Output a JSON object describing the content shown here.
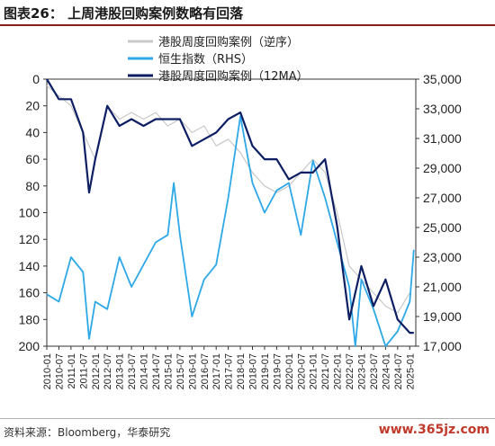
{
  "title": "图表26：  上周港股回购案例数略有回落",
  "source": "资料来源：Bloomberg，华泰研究",
  "watermark": "www.365jz.com",
  "chart_data": {
    "type": "line",
    "title": "上周港股回购案例数略有回落",
    "left_axis": {
      "label": "",
      "reversed": true,
      "ylim": [
        0,
        200
      ],
      "ticks": [
        0,
        20,
        40,
        60,
        80,
        100,
        120,
        140,
        160,
        180,
        200
      ]
    },
    "right_axis": {
      "label": "",
      "ylim": [
        17000,
        35000
      ],
      "ticks": [
        "17,000",
        "19,000",
        "21,000",
        "23,000",
        "25,000",
        "27,000",
        "29,000",
        "31,000",
        "33,000",
        "35,000"
      ]
    },
    "x_ticks": [
      "2010-01",
      "2010-07",
      "2011-01",
      "2011-07",
      "2012-01",
      "2012-07",
      "2013-01",
      "2013-07",
      "2014-01",
      "2014-07",
      "2015-01",
      "2015-07",
      "2016-01",
      "2016-07",
      "2017-01",
      "2017-07",
      "2018-01",
      "2018-07",
      "2019-01",
      "2019-07",
      "2020-01",
      "2020-07",
      "2021-01",
      "2021-07",
      "2022-01",
      "2022-07",
      "2023-01",
      "2023-07",
      "2024-01",
      "2024-07",
      "2025-01"
    ],
    "legend": {
      "placement": "top-center"
    },
    "series": [
      {
        "name": "港股周度回购案例（逆序）",
        "axis": "left",
        "color": "#c8c8c8",
        "x": [
          "2010-01",
          "2011-01",
          "2011-07",
          "2012-01",
          "2012-07",
          "2013-01",
          "2013-07",
          "2014-01",
          "2014-07",
          "2015-01",
          "2015-07",
          "2016-01",
          "2016-07",
          "2017-01",
          "2017-07",
          "2018-01",
          "2018-07",
          "2019-01",
          "2019-07",
          "2020-01",
          "2020-07",
          "2021-01",
          "2021-07",
          "2022-01",
          "2022-07",
          "2023-01",
          "2023-07",
          "2024-01",
          "2024-07",
          "2025-01"
        ],
        "values": [
          5,
          20,
          40,
          60,
          20,
          30,
          25,
          30,
          25,
          35,
          30,
          40,
          35,
          50,
          45,
          55,
          70,
          80,
          85,
          80,
          70,
          60,
          70,
          100,
          140,
          150,
          160,
          170,
          175,
          160
        ]
      },
      {
        "name": "恒生指数（RHS）",
        "axis": "right",
        "color": "#2ea8e6",
        "x": [
          "2010-01",
          "2010-07",
          "2011-01",
          "2011-07",
          "2011-10",
          "2012-01",
          "2012-07",
          "2013-01",
          "2013-07",
          "2014-01",
          "2014-07",
          "2015-01",
          "2015-04",
          "2015-07",
          "2016-01",
          "2016-07",
          "2017-01",
          "2017-07",
          "2018-01",
          "2018-07",
          "2019-01",
          "2019-07",
          "2020-01",
          "2020-07",
          "2021-01",
          "2021-07",
          "2022-01",
          "2022-07",
          "2022-10",
          "2023-01",
          "2023-07",
          "2024-01",
          "2024-07",
          "2025-01",
          "2025-03"
        ],
        "values": [
          20500,
          20000,
          23000,
          22000,
          17500,
          20000,
          19500,
          23000,
          21000,
          22500,
          24000,
          24500,
          28000,
          24500,
          19000,
          21500,
          22500,
          27000,
          32500,
          28000,
          26000,
          27500,
          28000,
          24500,
          29500,
          27000,
          24000,
          21000,
          15000,
          21500,
          19500,
          15500,
          18000,
          20000,
          23500
        ]
      },
      {
        "name": "港股周度回购案例（12MA）",
        "axis": "left",
        "color": "#0d1e63",
        "x": [
          "2010-01",
          "2010-07",
          "2011-01",
          "2011-07",
          "2011-10",
          "2012-01",
          "2012-07",
          "2013-01",
          "2013-07",
          "2014-01",
          "2014-07",
          "2015-01",
          "2015-07",
          "2016-01",
          "2016-07",
          "2017-01",
          "2017-07",
          "2018-01",
          "2018-07",
          "2019-01",
          "2019-07",
          "2020-01",
          "2020-07",
          "2021-01",
          "2021-07",
          "2022-01",
          "2022-07",
          "2023-01",
          "2023-07",
          "2024-01",
          "2024-07",
          "2025-01",
          "2025-03"
        ],
        "values": [
          0,
          15,
          15,
          40,
          85,
          60,
          20,
          35,
          30,
          35,
          30,
          30,
          30,
          50,
          45,
          40,
          30,
          25,
          50,
          60,
          60,
          75,
          70,
          70,
          60,
          110,
          180,
          140,
          170,
          150,
          180,
          190,
          190
        ]
      }
    ]
  }
}
